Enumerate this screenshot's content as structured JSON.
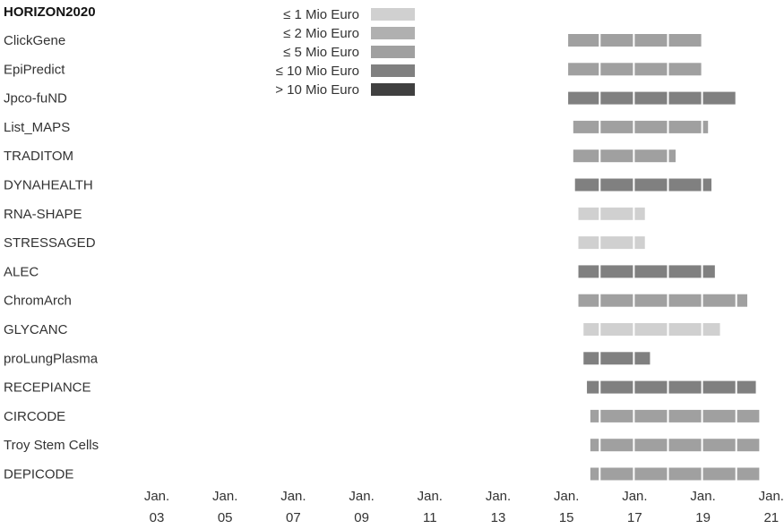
{
  "chart_data": {
    "type": "gantt",
    "title": "HORIZON2020",
    "x_axis": {
      "unit": "year",
      "range": [
        2003,
        2021
      ],
      "ticks": [
        {
          "value": 2003,
          "line1": "Jan.",
          "line2": "03"
        },
        {
          "value": 2005,
          "line1": "Jan.",
          "line2": "05"
        },
        {
          "value": 2007,
          "line1": "Jan.",
          "line2": "07"
        },
        {
          "value": 2009,
          "line1": "Jan.",
          "line2": "09"
        },
        {
          "value": 2011,
          "line1": "Jan.",
          "line2": "11"
        },
        {
          "value": 2013,
          "line1": "Jan.",
          "line2": "13"
        },
        {
          "value": 2015,
          "line1": "Jan.",
          "line2": "15"
        },
        {
          "value": 2017,
          "line1": "Jan.",
          "line2": "17"
        },
        {
          "value": 2019,
          "line1": "Jan.",
          "line2": "19"
        },
        {
          "value": 2021,
          "line1": "Jan.",
          "line2": "21"
        }
      ]
    },
    "legend": {
      "placement": "top-center",
      "items": [
        {
          "key": "c1",
          "label": "≤ 1 Mio Euro",
          "color": "#d0d0d0"
        },
        {
          "key": "c2",
          "label": "≤ 2 Mio Euro",
          "color": "#b0b0b0"
        },
        {
          "key": "c5",
          "label": "≤ 5 Mio Euro",
          "color": "#a0a0a0"
        },
        {
          "key": "c10",
          "label": "≤ 10 Mio Euro",
          "color": "#808080"
        },
        {
          "key": "cmax",
          "label": "> 10 Mio Euro",
          "color": "#404040"
        }
      ]
    },
    "projects": [
      {
        "name": "ClickGene",
        "start": 2015.05,
        "end": 2019.0,
        "category": "c5"
      },
      {
        "name": "EpiPredict",
        "start": 2015.05,
        "end": 2019.0,
        "category": "c5"
      },
      {
        "name": "Jpco-fuND",
        "start": 2015.05,
        "end": 2020.0,
        "category": "c10"
      },
      {
        "name": "List_MAPS",
        "start": 2015.2,
        "end": 2019.2,
        "category": "c5"
      },
      {
        "name": "TRADITOM",
        "start": 2015.2,
        "end": 2018.25,
        "category": "c5"
      },
      {
        "name": "DYNAHEALTH",
        "start": 2015.25,
        "end": 2019.3,
        "category": "c10"
      },
      {
        "name": "RNA-SHAPE",
        "start": 2015.35,
        "end": 2017.35,
        "category": "c1"
      },
      {
        "name": "STRESSAGED",
        "start": 2015.35,
        "end": 2017.35,
        "category": "c1"
      },
      {
        "name": "ALEC",
        "start": 2015.35,
        "end": 2019.4,
        "category": "c10"
      },
      {
        "name": "ChromArch",
        "start": 2015.35,
        "end": 2020.35,
        "category": "c5"
      },
      {
        "name": "GLYCANC",
        "start": 2015.5,
        "end": 2019.55,
        "category": "c1"
      },
      {
        "name": "proLungPlasma",
        "start": 2015.5,
        "end": 2017.5,
        "category": "c10"
      },
      {
        "name": "RECEPIANCE",
        "start": 2015.6,
        "end": 2020.6,
        "category": "c10"
      },
      {
        "name": "CIRCODE",
        "start": 2015.7,
        "end": 2020.7,
        "category": "c5"
      },
      {
        "name": "Troy Stem Cells",
        "start": 2015.7,
        "end": 2020.7,
        "category": "c5"
      },
      {
        "name": "DEPICODE",
        "start": 2015.7,
        "end": 2020.7,
        "category": "c5"
      }
    ]
  }
}
